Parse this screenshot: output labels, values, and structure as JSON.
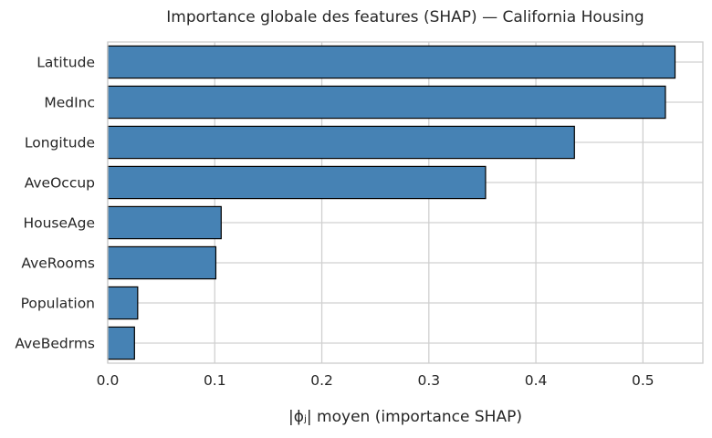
{
  "chart_data": {
    "type": "bar",
    "orientation": "horizontal",
    "title": "Importance globale des features (SHAP) — California Housing",
    "xlabel": "|ϕⱼ| moyen (importance SHAP)",
    "ylabel": "",
    "categories": [
      "Latitude",
      "MedInc",
      "Longitude",
      "AveOccup",
      "HouseAge",
      "AveRooms",
      "Population",
      "AveBedrms"
    ],
    "values": [
      0.53,
      0.521,
      0.436,
      0.353,
      0.106,
      0.101,
      0.028,
      0.025
    ],
    "xlim": [
      0.0,
      0.556
    ],
    "xticks": [
      "0.0",
      "0.1",
      "0.2",
      "0.3",
      "0.4",
      "0.5"
    ],
    "grid": true,
    "bar_color": "#4682b4",
    "bar_edge_color": "#000000"
  }
}
